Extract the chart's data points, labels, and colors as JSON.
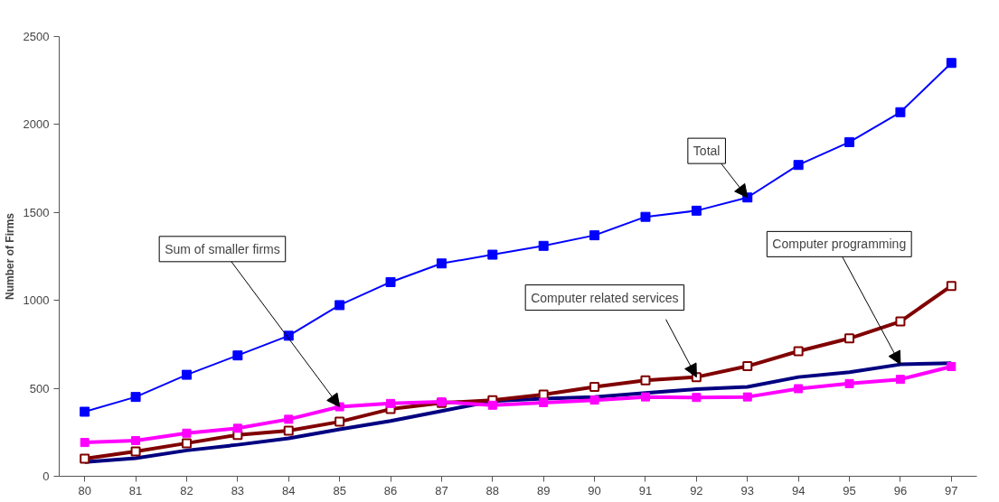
{
  "chart_data": {
    "type": "line",
    "ylabel": "Number of Firms",
    "categories": [
      "80",
      "81",
      "82",
      "83",
      "84",
      "85",
      "86",
      "87",
      "88",
      "89",
      "90",
      "91",
      "92",
      "93",
      "94",
      "95",
      "96",
      "97"
    ],
    "ylim": [
      0,
      2500
    ],
    "yticks": [
      0,
      500,
      1000,
      1500,
      2000,
      2500
    ],
    "grid": false,
    "series": [
      {
        "color": "#0000ff",
        "marker": "square",
        "values": [
          367,
          451,
          577,
          687,
          799,
          973,
          1104,
          1210,
          1260,
          1310,
          1370,
          1475,
          1510,
          1585,
          1770,
          1900,
          2070,
          2350
        ]
      },
      {
        "color": "#000080",
        "marker": "none",
        "values": [
          81,
          103,
          147,
          179,
          216,
          267,
          314,
          371,
          427,
          442,
          451,
          474,
          495,
          508,
          564,
          592,
          636,
          643
        ]
      },
      {
        "color": "#800000",
        "marker": "square",
        "values": [
          100,
          141,
          188,
          235,
          259,
          310,
          382,
          417,
          433,
          465,
          508,
          545,
          564,
          626,
          711,
          784,
          880,
          1082
        ]
      },
      {
        "color": "#ff00ff",
        "marker": "square",
        "values": [
          192,
          203,
          245,
          273,
          324,
          395,
          414,
          423,
          404,
          419,
          433,
          451,
          448,
          451,
          498,
          527,
          551,
          624
        ]
      }
    ],
    "annotations": [
      {
        "text": "Total",
        "x": "93",
        "y": 1585
      },
      {
        "text": "Computer programming",
        "x": "96",
        "y": 636
      },
      {
        "text": "Computer related services",
        "x": "92",
        "y": 564
      },
      {
        "text": "Sum of smaller firms",
        "x": "85",
        "y": 395
      }
    ]
  }
}
